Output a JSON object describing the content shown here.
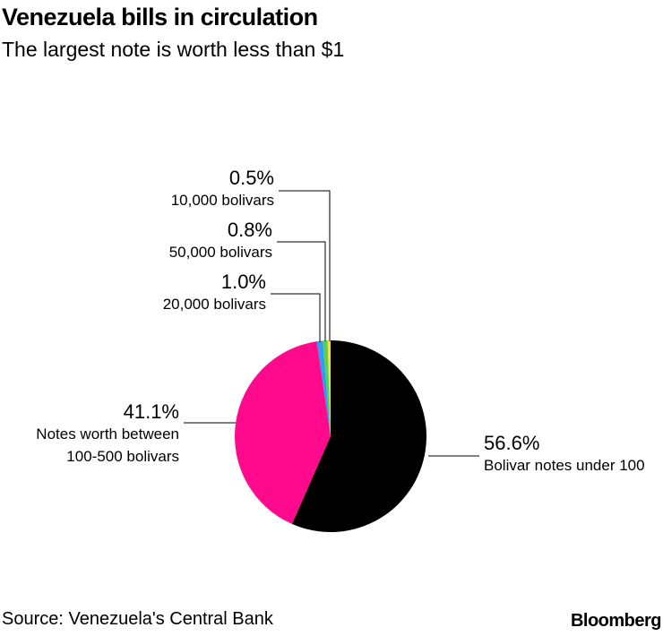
{
  "chart_data": {
    "type": "pie",
    "title": "Venezuela bills in circulation",
    "subtitle": "The largest note is worth less than $1",
    "categories": [
      "Bolivar notes under 100",
      "Notes worth between 100-500 bolivars",
      "20,000 bolivars",
      "50,000 bolivars",
      "10,000 bolivars"
    ],
    "values": [
      56.6,
      41.1,
      1.0,
      0.8,
      0.5
    ],
    "value_labels": [
      "56.6%",
      "41.1%",
      "1.0%",
      "0.8%",
      "0.5%"
    ],
    "colors": [
      "#000000",
      "#ff0a8c",
      "#2f9cf0",
      "#56d158",
      "#f4e23c"
    ],
    "source": "Source: Venezuela's Central Bank",
    "brand": "Bloomberg"
  }
}
